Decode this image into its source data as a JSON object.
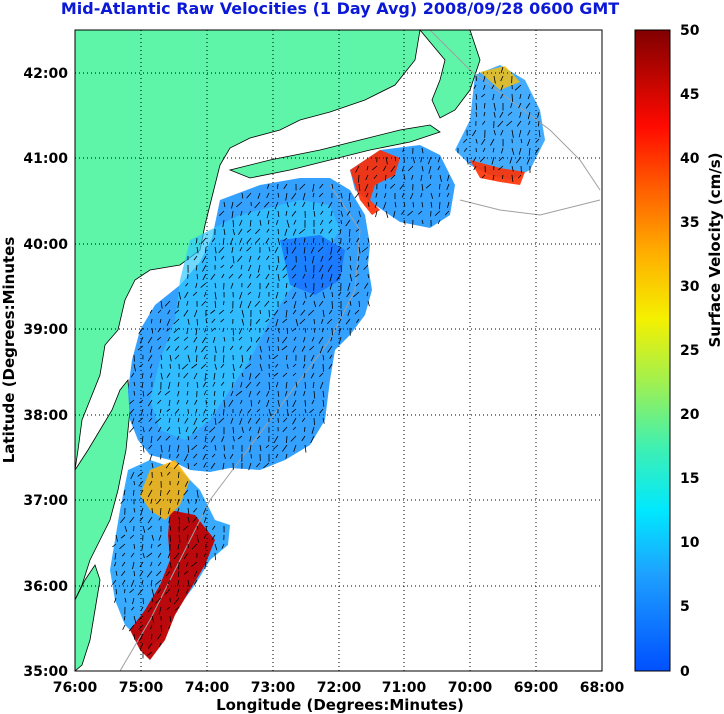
{
  "title": "Mid-Atlantic Raw Velocities (1 Day Avg) 2008/09/28 0600 GMT",
  "chart_data": {
    "type": "heatmap",
    "xlabel": "Longitude (Degrees:Minutes)",
    "ylabel": "Latitude (Degrees:Minutes",
    "x_ticks": [
      "76:00",
      "75:00",
      "74:00",
      "73:00",
      "72:00",
      "71:00",
      "70:00",
      "69:00",
      "68:00"
    ],
    "y_ticks": [
      "42:00",
      "41:00",
      "40:00",
      "39:00",
      "38:00",
      "37:00",
      "36:00",
      "35:00"
    ],
    "xlim": [
      -76,
      -68
    ],
    "ylim": [
      35,
      42.5
    ],
    "grid": true,
    "colorbar": {
      "label": "Surface Velocity (cm/s)",
      "ticks": [
        "50",
        "45",
        "40",
        "35",
        "30",
        "25",
        "20",
        "15",
        "10",
        "5",
        "0"
      ],
      "range": [
        0,
        50
      ],
      "colormap": "jet"
    },
    "colors": {
      "land": "#5ef5a8",
      "title": "#0b19d6",
      "grid": "#000000",
      "bathymetry": "#a0a0a0"
    }
  }
}
